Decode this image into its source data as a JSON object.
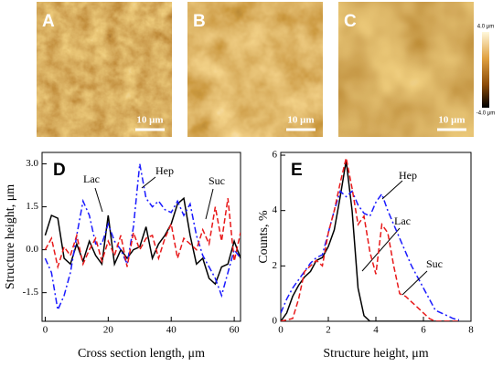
{
  "images": [
    {
      "label": "A",
      "scale_bar": "10 μm"
    },
    {
      "label": "B",
      "scale_bar": "10 μm"
    },
    {
      "label": "C",
      "scale_bar": "10 μm"
    }
  ],
  "colorbar": {
    "max_label": "4.0 μm",
    "min_label": "-4.0 μm"
  },
  "chart_data": [
    {
      "type": "line",
      "panel_label": "D",
      "x_label": "Cross section length, μm",
      "y_label": "Structure height,  μm",
      "x": [
        0,
        2,
        4,
        6,
        8,
        10,
        12,
        14,
        16,
        18,
        20,
        22,
        24,
        26,
        28,
        30,
        32,
        34,
        36,
        38,
        40,
        42,
        44,
        46,
        48,
        50,
        52,
        54,
        56,
        58,
        60,
        62
      ],
      "series": [
        {
          "name": "Lac",
          "color": "#000000",
          "style": "solid",
          "values": [
            0.5,
            1.2,
            1.1,
            -0.3,
            -0.5,
            0.2,
            -0.4,
            0.3,
            -0.2,
            -0.5,
            1.2,
            -0.5,
            0.0,
            -0.3,
            0,
            0.1,
            0.8,
            -0.3,
            0.2,
            0.5,
            0.9,
            1.6,
            1.8,
            0.5,
            -0.5,
            -0.3,
            -1.0,
            -1.2,
            -0.6,
            -0.5,
            0.3,
            -0.3
          ]
        },
        {
          "name": "Hep",
          "color": "#1a1aff",
          "style": "dash-dot",
          "values": [
            -0.3,
            -0.8,
            -2.1,
            -1.6,
            -0.8,
            0.5,
            1.7,
            1.2,
            0.2,
            0.2,
            0.9,
            0.3,
            0.0,
            -0.5,
            0.8,
            3.0,
            1.8,
            1.5,
            1.7,
            1.4,
            1.3,
            1.7,
            1.2,
            1.6,
            0.5,
            -0.2,
            -0.6,
            -1.0,
            -1.6,
            -0.8,
            0,
            -0.3
          ]
        },
        {
          "name": "Suc",
          "color": "#e8191a",
          "style": "dashed",
          "values": [
            0,
            0.4,
            -0.6,
            0.1,
            -0.2,
            0.5,
            -0.5,
            0,
            0.4,
            -0.4,
            0.3,
            -0.2,
            0.5,
            -0.6,
            0.6,
            0,
            0.4,
            0.5,
            -0.3,
            0.4,
            0.9,
            -0.3,
            0.4,
            0.2,
            0,
            0.7,
            0.2,
            1.5,
            0.3,
            1.8,
            -0.4,
            0.6
          ]
        }
      ],
      "xlim": [
        -1,
        62
      ],
      "xticks": [
        0,
        20,
        40,
        60
      ],
      "ylim": [
        -2.5,
        3.4
      ],
      "yticks": [
        -1.5,
        {
          "value": 0,
          "label": "0.0"
        },
        1.5,
        {
          "value": 3,
          "label": "3.0"
        }
      ]
    },
    {
      "type": "line",
      "panel_label": "E",
      "x_label": "Structure height,  μm",
      "y_label": "Counts, %",
      "x": [
        0,
        0.25,
        0.5,
        0.75,
        1,
        1.25,
        1.5,
        1.75,
        2,
        2.25,
        2.5,
        2.75,
        3,
        3.25,
        3.5,
        3.75,
        4,
        4.25,
        4.5,
        4.75,
        5,
        5.25,
        5.5,
        5.75,
        6,
        6.25,
        6.5,
        6.75,
        7,
        7.25,
        7.5
      ],
      "series": [
        {
          "name": "Lac",
          "color": "#000000",
          "style": "solid",
          "values": [
            0,
            0.3,
            0.9,
            1.3,
            1.6,
            1.8,
            2.2,
            2.3,
            2.7,
            3.3,
            4.5,
            5.8,
            4.0,
            1.2,
            0.2,
            0,
            0,
            0,
            0,
            0,
            0,
            0,
            0,
            0,
            0,
            0,
            0,
            0,
            0,
            0,
            0
          ]
        },
        {
          "name": "Hep",
          "color": "#1a1aff",
          "style": "dash-dot",
          "values": [
            0.3,
            0.8,
            1.2,
            1.5,
            1.8,
            2.1,
            2.3,
            2.4,
            3.2,
            4.0,
            4.7,
            4.5,
            4.7,
            4.2,
            3.9,
            3.8,
            4.3,
            4.6,
            4.0,
            3.5,
            3.0,
            2.5,
            2.0,
            1.6,
            1.2,
            0.8,
            0.4,
            0.3,
            0.2,
            0.1,
            0.05
          ]
        },
        {
          "name": "Suc",
          "color": "#e8191a",
          "style": "dashed",
          "values": [
            0,
            0.05,
            0.1,
            0.8,
            1.8,
            2.0,
            2.2,
            2.0,
            3.2,
            4.0,
            5.0,
            5.9,
            4.8,
            3.5,
            3.8,
            2.5,
            1.7,
            3.5,
            3.2,
            2.0,
            1.0,
            0.9,
            0.7,
            0.5,
            0.3,
            0.1,
            0,
            0,
            0,
            0,
            0
          ]
        }
      ],
      "xlim": [
        0,
        8
      ],
      "xticks": [
        0,
        2,
        4,
        6,
        8
      ],
      "ylim": [
        0,
        6.1
      ],
      "yticks": [
        0,
        2,
        4,
        6
      ]
    }
  ]
}
